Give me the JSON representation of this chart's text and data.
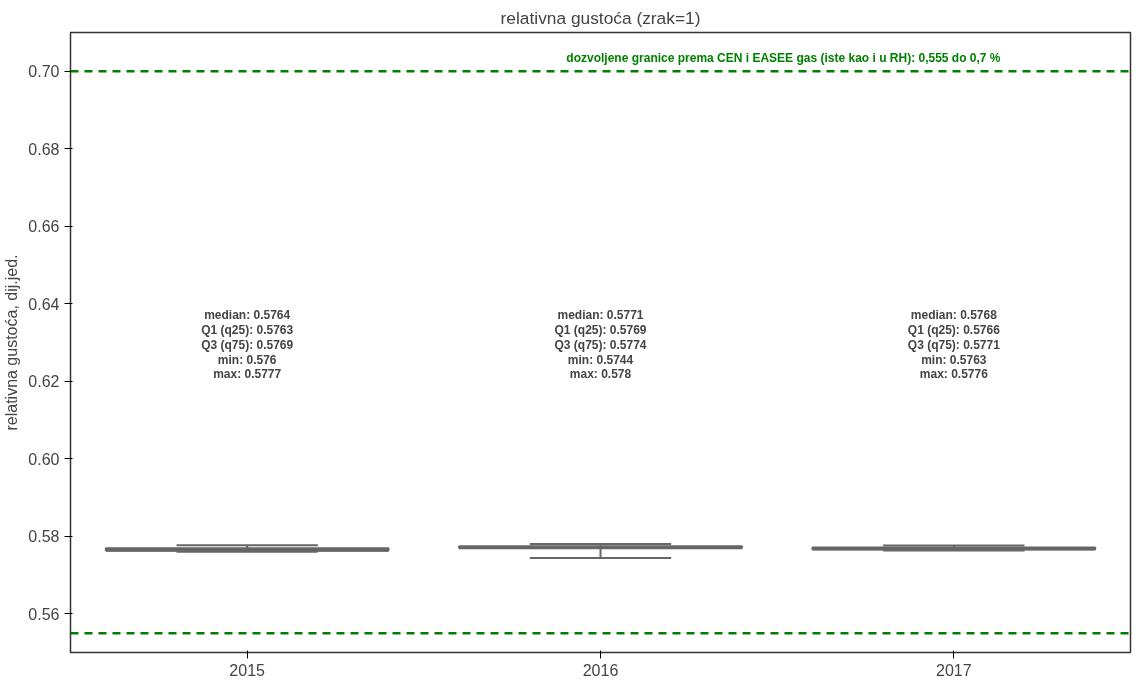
{
  "chart_data": {
    "type": "box",
    "title": "relativna gustoća (zrak=1)",
    "ylabel": "relativna gustoća, dij.jed.",
    "categories": [
      "2015",
      "2016",
      "2017"
    ],
    "boxes": [
      {
        "low": 0.576,
        "q1": 0.5763,
        "median": 0.5764,
        "q3": 0.5769,
        "high": 0.5777
      },
      {
        "low": 0.5744,
        "q1": 0.5769,
        "median": 0.5771,
        "q3": 0.5774,
        "high": 0.578
      },
      {
        "low": 0.5763,
        "q1": 0.5766,
        "median": 0.5768,
        "q3": 0.5771,
        "high": 0.5776
      }
    ],
    "color": "#666666",
    "ylim": [
      0.55,
      0.71
    ],
    "yticks": [
      0.56,
      0.58,
      {
        "value": 0.6,
        "label": "0.60"
      },
      0.62,
      0.64,
      0.66,
      0.68,
      {
        "value": 0.7,
        "label": "0.70"
      }
    ],
    "grid": false,
    "ref_lines": [
      {
        "axis": "y",
        "value": 0.7,
        "label": "dozvoljene granice prema CEN i EASEE gas (iste kao i u RH): 0,555 do 0,7 %",
        "color": "#008000",
        "line_style": "dashed"
      },
      {
        "axis": "y",
        "value": 0.555,
        "label": null,
        "color": "#008000",
        "line_style": "dashed"
      }
    ],
    "annotations": [
      "median: 0.5764\nQ1 (q25): 0.5763\nQ3 (q75): 0.5769\nmin: 0.576\nmax: 0.5777",
      "median: 0.5771\nQ1 (q25): 0.5769\nQ3 (q75): 0.5774\nmin: 0.5744\nmax: 0.578",
      "median: 0.5768\nQ1 (q25): 0.5766\nQ3 (q75): 0.5771\nmin: 0.5763\nmax: 0.5776"
    ]
  }
}
